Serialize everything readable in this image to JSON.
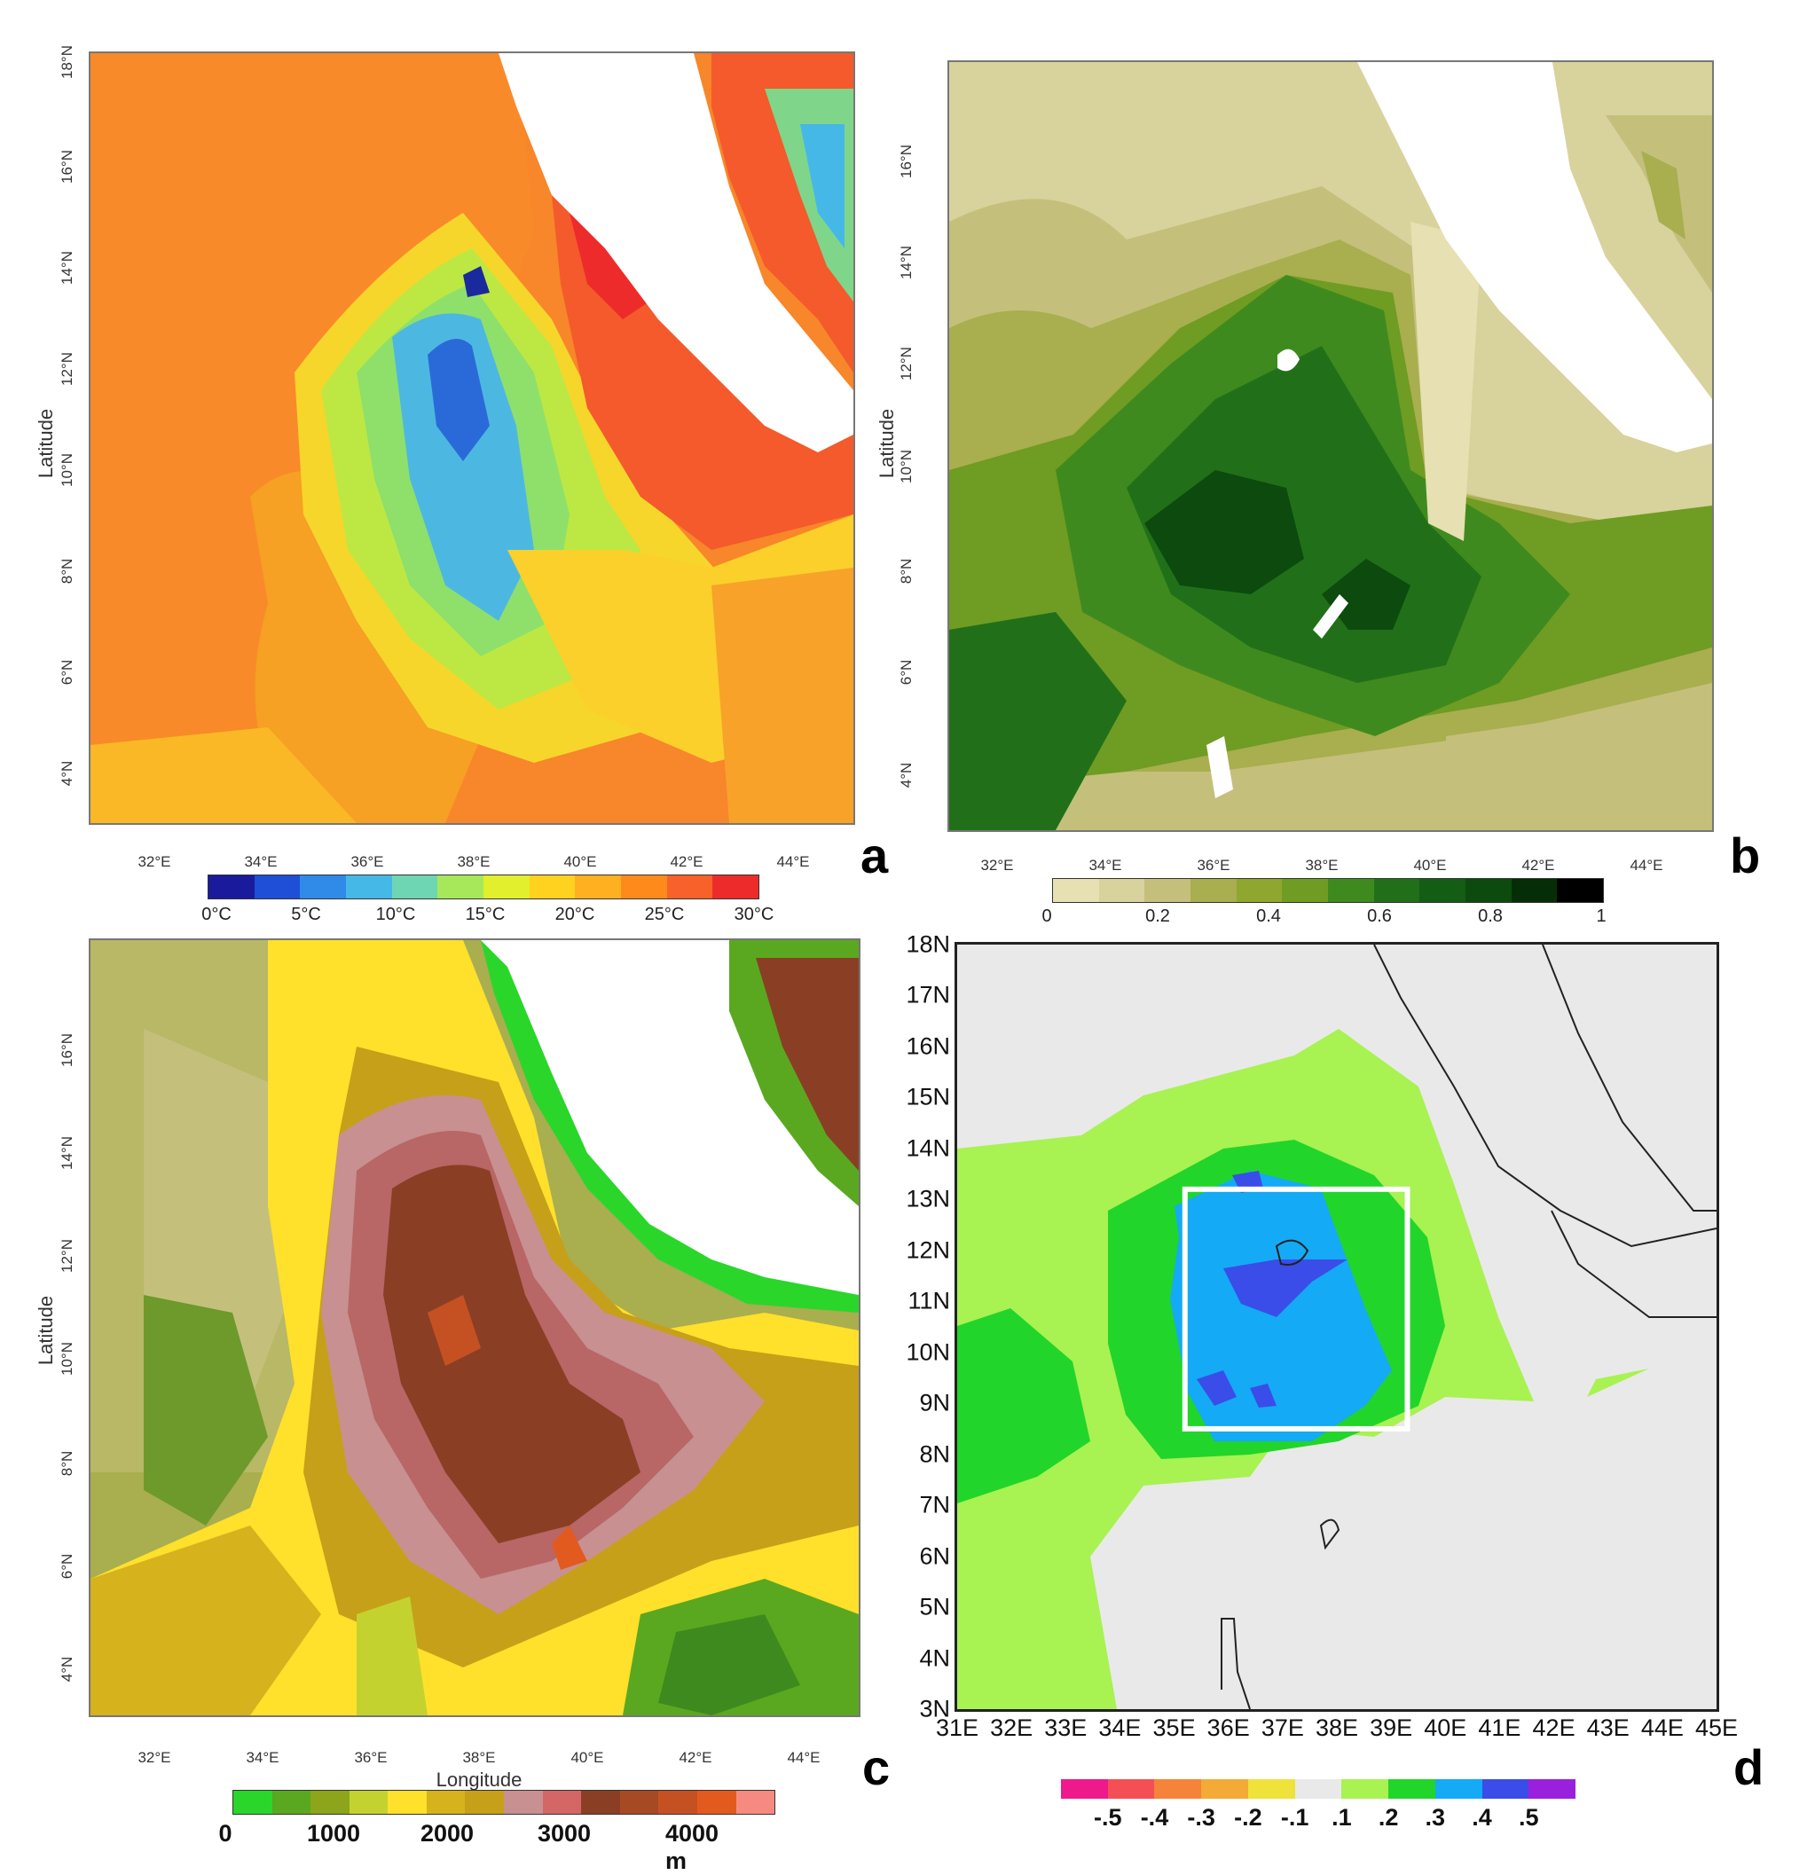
{
  "panels": {
    "a": {
      "letter": "a",
      "ylabel": "Latitude",
      "lon_ticks": [
        "32°E",
        "34°E",
        "36°E",
        "38°E",
        "40°E",
        "42°E",
        "44°E"
      ],
      "lat_ticks": [
        "18°N",
        "16°N",
        "14°N",
        "12°N",
        "10°N",
        "8°N",
        "6°N",
        "4°N"
      ],
      "colorbar_labels": [
        "0°C",
        "5°C",
        "10°C",
        "15°C",
        "20°C",
        "25°C",
        "30°C"
      ]
    },
    "b": {
      "letter": "b",
      "ylabel": "Latitude",
      "lon_ticks": [
        "32°E",
        "34°E",
        "36°E",
        "38°E",
        "40°E",
        "42°E",
        "44°E"
      ],
      "lat_ticks": [
        "16°N",
        "14°N",
        "12°N",
        "10°N",
        "8°N",
        "6°N",
        "4°N"
      ],
      "colorbar_labels": [
        "0",
        "0.2",
        "0.4",
        "0.6",
        "0.8",
        "1"
      ]
    },
    "c": {
      "letter": "c",
      "ylabel": "Latitude",
      "xlabel": "Longitude",
      "lon_ticks": [
        "32°E",
        "34°E",
        "36°E",
        "38°E",
        "40°E",
        "42°E",
        "44°E"
      ],
      "lat_ticks": [
        "16°N",
        "14°N",
        "12°N",
        "10°N",
        "8°N",
        "6°N",
        "4°N"
      ],
      "colorbar_labels": [
        "0",
        "1000",
        "2000",
        "3000",
        "4000 m"
      ]
    },
    "d": {
      "letter": "d",
      "lon_ticks": [
        "31E",
        "32E",
        "33E",
        "34E",
        "35E",
        "36E",
        "37E",
        "38E",
        "39E",
        "40E",
        "41E",
        "42E",
        "43E",
        "44E",
        "45E"
      ],
      "lat_ticks": [
        "18N",
        "17N",
        "16N",
        "15N",
        "14N",
        "13N",
        "12N",
        "11N",
        "10N",
        "9N",
        "8N",
        "7N",
        "6N",
        "5N",
        "4N",
        "3N"
      ],
      "colorbar_labels": [
        "-.5",
        "-.4",
        "-.3",
        "-.2",
        "-.1",
        ".1",
        ".2",
        ".3",
        ".4",
        ".5"
      ],
      "box_lon": [
        35.2,
        39.3
      ],
      "box_lat": [
        8.5,
        13.2
      ]
    }
  },
  "colors": {
    "temperature_scale": [
      "#1a1a9c",
      "#1f4fd6",
      "#2f8ae8",
      "#45b8e8",
      "#6fd6b4",
      "#a6e85a",
      "#e2ef2c",
      "#ffd21f",
      "#ffb020",
      "#ff8a1c",
      "#f8622a",
      "#ee2b2b"
    ],
    "greenness_scale": [
      "#e6e0b2",
      "#d8d29c",
      "#c4c07c",
      "#a9ae4f",
      "#8fa72e",
      "#6f9c22",
      "#3f8a1e",
      "#217019",
      "#145d14",
      "#0c4a0e",
      "#052e06",
      "#000000"
    ],
    "elevation_scale": [
      "#2ad62a",
      "#5aa81f",
      "#8ca51a",
      "#c4d22f",
      "#ffe02b",
      "#d6b21d",
      "#c7a019",
      "#c89090",
      "#d46666",
      "#8a3f24",
      "#a64a23",
      "#c55123",
      "#e35a1f",
      "#f68a80"
    ],
    "anomaly_scale": [
      "#ee1a8c",
      "#f44f55",
      "#f6833a",
      "#f3aa36",
      "#efe23a",
      "#e9e9e9",
      "#a8f252",
      "#22d52a",
      "#14aaf5",
      "#3a4de8",
      "#9a20de"
    ]
  }
}
